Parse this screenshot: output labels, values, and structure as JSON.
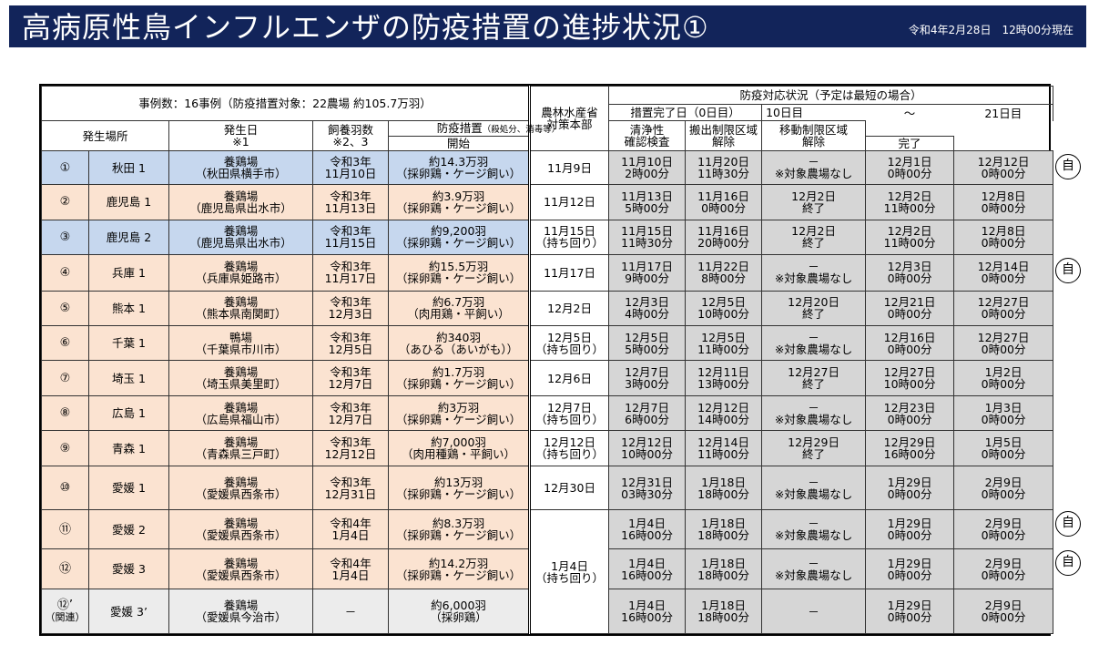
{
  "header": {
    "title": "高病原性鳥インフルエンザの防疫措置の進捗状況①",
    "as_of": "令和4年2月28日　12時00分現在"
  },
  "table_head": {
    "summary": "事例数：16事例（防疫措置対象：22農場 約105.7万羽）",
    "location": "発生場所",
    "onset": [
      "発生日",
      "※1"
    ],
    "birds": [
      "飼養羽数",
      "※2、3"
    ],
    "hq": [
      "農林水産省",
      "対策本部"
    ],
    "status": "防疫対応状況（予定は最短の場合）",
    "day0": "措置完了日（0日目）",
    "day10": "10日目",
    "tilde": "～",
    "day21": "21日目",
    "measures": "防疫措置",
    "measures_note": "（殺処分、消毒等）",
    "start": "開始",
    "complete": "完了",
    "clean": [
      "清浄性",
      "確認検査"
    ],
    "carry": [
      "搬出制限区域",
      "解除"
    ],
    "move": [
      "移動制限区域",
      "解除"
    ]
  },
  "rows": [
    {
      "no": "①",
      "place": "秋田 1",
      "farm": "養鶏場",
      "addr": "（秋田県横手市）",
      "date": [
        "令和3年",
        "11月10日"
      ],
      "birds": [
        "約14.3万羽",
        "（採卵鶏・ケージ飼い）"
      ],
      "start": [
        "11月10日",
        "2時00分"
      ],
      "end": [
        "11月20日",
        "11時30分"
      ],
      "clean": [
        "－",
        "※対象農場なし"
      ],
      "carry": [
        "12月1日",
        "0時00分"
      ],
      "move": [
        "12月12日",
        "0時00分"
      ],
      "mark": "自"
    },
    {
      "no": "②",
      "place": "鹿児島 1",
      "farm": "養鶏場",
      "addr": "（鹿児島県出水市）",
      "date": [
        "令和3年",
        "11月13日"
      ],
      "birds": [
        "約3.9万羽",
        "（採卵鶏・ケージ飼い）"
      ],
      "start": [
        "11月13日",
        "5時00分"
      ],
      "end": [
        "11月16日",
        "0時00分"
      ],
      "clean": [
        "12月2日",
        "終了"
      ],
      "carry": [
        "12月2日",
        "11時00分"
      ],
      "move": [
        "12月8日",
        "0時00分"
      ],
      "mark": ""
    },
    {
      "no": "③",
      "place": "鹿児島 2",
      "farm": "養鶏場",
      "addr": "（鹿児島県出水市）",
      "date": [
        "令和3年",
        "11月15日"
      ],
      "birds": [
        "約9,200羽",
        "（採卵鶏・ケージ飼い）"
      ],
      "start": [
        "11月15日",
        "11時30分"
      ],
      "end": [
        "11月16日",
        "20時00分"
      ],
      "clean": [
        "12月2日",
        "終了"
      ],
      "carry": [
        "12月2日",
        "11時00分"
      ],
      "move": [
        "12月8日",
        "0時00分"
      ],
      "mark": ""
    },
    {
      "no": "④",
      "place": "兵庫 1",
      "farm": "養鶏場",
      "addr": "（兵庫県姫路市）",
      "date": [
        "令和3年",
        "11月17日"
      ],
      "birds": [
        "約15.5万羽",
        "（採卵鶏・ケージ飼い）"
      ],
      "start": [
        "11月17日",
        "9時00分"
      ],
      "end": [
        "11月22日",
        "8時00分"
      ],
      "clean": [
        "－",
        "※対象農場なし"
      ],
      "carry": [
        "12月3日",
        "0時00分"
      ],
      "move": [
        "12月14日",
        "0時00分"
      ],
      "mark": "自"
    },
    {
      "no": "⑤",
      "place": "熊本 1",
      "farm": "養鶏場",
      "addr": "（熊本県南関町）",
      "date": [
        "令和3年",
        "12月3日"
      ],
      "birds": [
        "約6.7万羽",
        "（肉用鶏・平飼い）"
      ],
      "start": [
        "12月3日",
        "4時00分"
      ],
      "end": [
        "12月5日",
        "10時00分"
      ],
      "clean": [
        "12月20日",
        "終了"
      ],
      "carry": [
        "12月21日",
        "0時00分"
      ],
      "move": [
        "12月27日",
        "0時00分"
      ],
      "mark": ""
    },
    {
      "no": "⑥",
      "place": "千葉 1",
      "farm": "鴨場",
      "addr": "（千葉県市川市）",
      "date": [
        "令和3年",
        "12月5日"
      ],
      "birds": [
        "約340羽",
        "（あひる（あいがも））"
      ],
      "start": [
        "12月5日",
        "5時00分"
      ],
      "end": [
        "12月5日",
        "11時00分"
      ],
      "clean": [
        "－",
        "※対象農場なし"
      ],
      "carry": [
        "12月16日",
        "0時00分"
      ],
      "move": [
        "12月27日",
        "0時00分"
      ],
      "mark": ""
    },
    {
      "no": "⑦",
      "place": "埼玉 1",
      "farm": "養鶏場",
      "addr": "（埼玉県美里町）",
      "date": [
        "令和3年",
        "12月7日"
      ],
      "birds": [
        "約1.7万羽",
        "（採卵鶏・ケージ飼い）"
      ],
      "start": [
        "12月7日",
        "3時00分"
      ],
      "end": [
        "12月11日",
        "13時00分"
      ],
      "clean": [
        "12月27日",
        "終了"
      ],
      "carry": [
        "12月27日",
        "10時00分"
      ],
      "move": [
        "1月2日",
        "0時00分"
      ],
      "mark": ""
    },
    {
      "no": "⑧",
      "place": "広島 1",
      "farm": "養鶏場",
      "addr": "（広島県福山市）",
      "date": [
        "令和3年",
        "12月7日"
      ],
      "birds": [
        "約3万羽",
        "（採卵鶏・ケージ飼い）"
      ],
      "start": [
        "12月7日",
        "6時00分"
      ],
      "end": [
        "12月12日",
        "14時00分"
      ],
      "clean": [
        "－",
        "※対象農場なし"
      ],
      "carry": [
        "12月23日",
        "0時00分"
      ],
      "move": [
        "1月3日",
        "0時00分"
      ],
      "mark": ""
    },
    {
      "no": "⑨",
      "place": "青森 1",
      "farm": "養鶏場",
      "addr": "（青森県三戸町）",
      "date": [
        "令和3年",
        "12月12日"
      ],
      "birds": [
        "約7,000羽",
        "（肉用種鶏・平飼い）"
      ],
      "start": [
        "12月12日",
        "10時00分"
      ],
      "end": [
        "12月14日",
        "11時00分"
      ],
      "clean": [
        "12月29日",
        "終了"
      ],
      "carry": [
        "12月29日",
        "16時00分"
      ],
      "move": [
        "1月5日",
        "0時00分"
      ],
      "mark": ""
    },
    {
      "no": "⑩",
      "place": "愛媛 1",
      "farm": "養鶏場",
      "addr": "（愛媛県西条市）",
      "date": [
        "令和3年",
        "12月31日"
      ],
      "birds": [
        "約13万羽",
        "（採卵鶏・ケージ飼い）"
      ],
      "start": [
        "12月31日",
        "03時30分"
      ],
      "end": [
        "1月18日",
        "18時00分"
      ],
      "clean": [
        "－",
        "※対象農場なし"
      ],
      "carry": [
        "1月29日",
        "0時00分"
      ],
      "move": [
        "2月9日",
        "0時00分"
      ],
      "mark": ""
    },
    {
      "no": "⑪",
      "place": "愛媛 2",
      "farm": "養鶏場",
      "addr": "（愛媛県西条市）",
      "date": [
        "令和4年",
        "1月4日"
      ],
      "birds": [
        "約8.3万羽",
        "（採卵鶏・ケージ飼い）"
      ],
      "start": [
        "1月4日",
        "16時00分"
      ],
      "end": [
        "1月18日",
        "18時00分"
      ],
      "clean": [
        "－",
        "※対象農場なし"
      ],
      "carry": [
        "1月29日",
        "0時00分"
      ],
      "move": [
        "2月9日",
        "0時00分"
      ],
      "mark": "自"
    },
    {
      "no": "⑫",
      "place": "愛媛 3",
      "farm": "養鶏場",
      "addr": "（愛媛県西条市）",
      "date": [
        "令和4年",
        "1月4日"
      ],
      "birds": [
        "約14.2万羽",
        "（採卵鶏・ケージ飼い）"
      ],
      "start": [
        "1月4日",
        "16時00分"
      ],
      "end": [
        "1月18日",
        "18時00分"
      ],
      "clean": [
        "－",
        "※対象農場なし"
      ],
      "carry": [
        "1月29日",
        "0時00分"
      ],
      "move": [
        "2月9日",
        "0時00分"
      ],
      "mark": "自"
    },
    {
      "no": "⑫’",
      "place": "愛媛 3’",
      "farm": "養鶏場",
      "addr": "（愛媛県今治市）",
      "date": [
        "－"
      ],
      "birds": [
        "約6,000羽",
        "（採卵鶏）"
      ],
      "start": [
        "1月4日",
        "16時00分"
      ],
      "end": [
        "1月18日",
        "18時00分"
      ],
      "clean": [
        "－"
      ],
      "carry": [
        "1月29日",
        "0時00分"
      ],
      "move": [
        "2月9日",
        "0時00分"
      ],
      "mark": "",
      "note": "（関連）"
    }
  ],
  "hq_dates": [
    [
      "11月9日"
    ],
    [
      "11月12日"
    ],
    [
      "11月15日",
      "（持ち回り）"
    ],
    [
      "11月17日"
    ],
    [
      "12月2日"
    ],
    [
      "12月5日",
      "（持ち回り）"
    ],
    [
      "12月6日"
    ],
    [
      "12月7日",
      "（持ち回り）"
    ],
    [
      "12月12日",
      "（持ち回り）"
    ],
    [
      "12月30日"
    ],
    [
      "1月4日",
      "（持ち回り）"
    ]
  ],
  "row_colors": [
    "blue",
    "peach",
    "blue",
    "peach",
    "peach",
    "peach",
    "peach",
    "peach",
    "peach",
    "peach",
    "peach",
    "peach",
    "lgray"
  ]
}
